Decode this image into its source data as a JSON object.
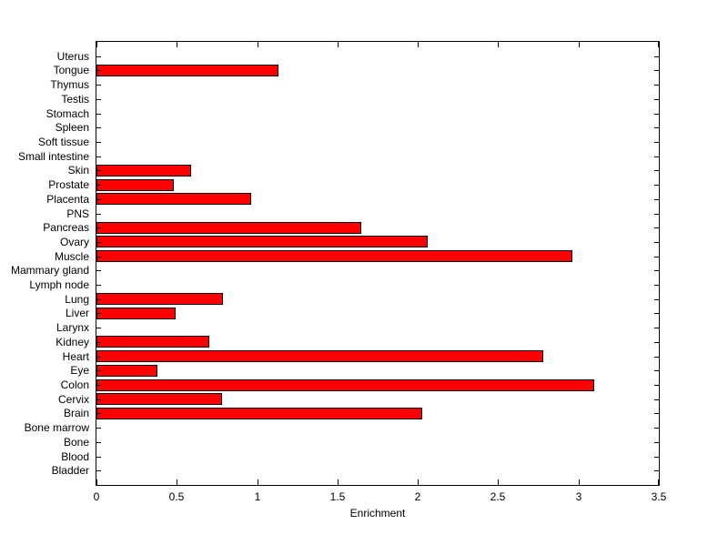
{
  "figure": {
    "background_color": "#ffffff",
    "axis_color": "#000000",
    "bar_fill_color": "#ff0000",
    "bar_edge_color": "#000000"
  },
  "chart_data": {
    "type": "bar",
    "orientation": "horizontal",
    "title": "",
    "xlabel": "Enrichment",
    "ylabel": "",
    "xlim": [
      0,
      3.5
    ],
    "xticks": [
      0,
      0.5,
      1,
      1.5,
      2,
      2.5,
      3,
      3.5
    ],
    "xtick_labels": [
      "0",
      "0.5",
      "1",
      "1.5",
      "2",
      "2.5",
      "3",
      "3.5"
    ],
    "grid": false,
    "legend": null,
    "categories": [
      "Uterus",
      "Tongue",
      "Thymus",
      "Testis",
      "Stomach",
      "Spleen",
      "Soft tissue",
      "Small intestine",
      "Skin",
      "Prostate",
      "Placenta",
      "PNS",
      "Pancreas",
      "Ovary",
      "Muscle",
      "Mammary gland",
      "Lymph node",
      "Lung",
      "Liver",
      "Larynx",
      "Kidney",
      "Heart",
      "Eye",
      "Colon",
      "Cervix",
      "Brain",
      "Bone marrow",
      "Bone",
      "Blood",
      "Bladder"
    ],
    "values": [
      0,
      1.13,
      0,
      0,
      0,
      0,
      0,
      0,
      0.59,
      0.48,
      0.96,
      0,
      1.65,
      2.06,
      2.96,
      0,
      0,
      0.79,
      0.49,
      0,
      0.7,
      2.78,
      0.38,
      3.1,
      0.78,
      2.03,
      0,
      0,
      0,
      0
    ]
  }
}
